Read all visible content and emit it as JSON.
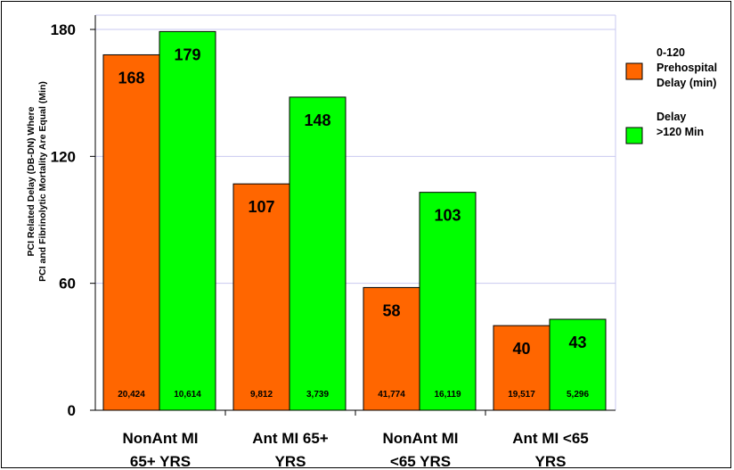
{
  "chart_data": {
    "type": "bar",
    "categories": [
      [
        "NonAnt MI",
        "65+ YRS"
      ],
      [
        "Ant MI 65+",
        "YRS"
      ],
      [
        "NonAnt MI",
        "<65 YRS"
      ],
      [
        "Ant MI <65",
        "YRS"
      ]
    ],
    "series": [
      {
        "name": [
          "0-120",
          "Prehospital",
          "Delay (min)"
        ],
        "color": "#ff6600",
        "values": [
          168,
          107,
          58,
          40
        ],
        "n_labels": [
          "20,424",
          "9,812",
          "41,774",
          "19,517"
        ]
      },
      {
        "name": [
          "Delay",
          ">120 Min"
        ],
        "color": "#00ff00",
        "values": [
          179,
          148,
          103,
          43
        ],
        "n_labels": [
          "10,614",
          "3,739",
          "16,119",
          "5,296"
        ]
      }
    ],
    "ylabel": [
      "PCI Related Delay (DB-DN) Where",
      "PCI and Fibrinolytic Mortality Are Equal (Min)"
    ],
    "ylim": [
      0,
      180
    ],
    "yticks": [
      0,
      60,
      120,
      180
    ],
    "grid": true,
    "legend_position": "right"
  }
}
